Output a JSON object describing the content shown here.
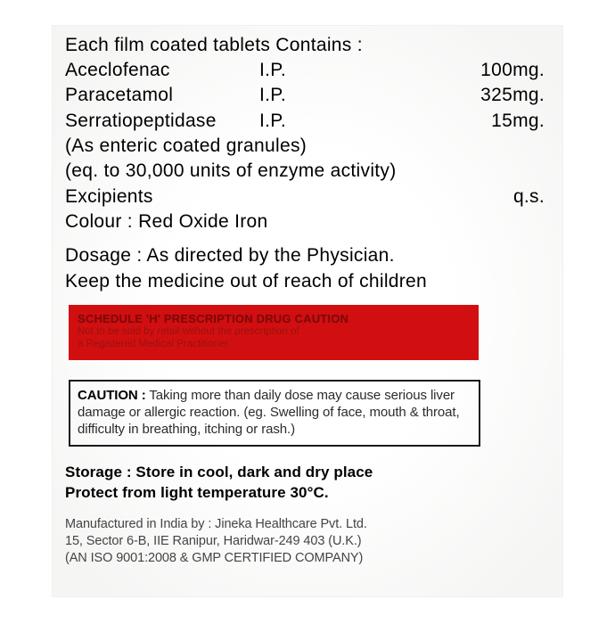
{
  "header": "Each film coated tablets Contains :",
  "ingredients": [
    {
      "name": "Aceclofenac",
      "spec": "I.P.",
      "amount": "100mg."
    },
    {
      "name": "Paracetamol",
      "spec": "I.P.",
      "amount": "325mg."
    },
    {
      "name": "Serratiopeptidase",
      "spec": "I.P.",
      "amount": "15mg."
    }
  ],
  "notes": [
    "(As enteric coated granules)",
    "(eq. to 30,000 units of enzyme activity)"
  ],
  "excipients": {
    "label": "Excipients",
    "value": "q.s."
  },
  "colour": "Colour : Red Oxide Iron",
  "dosage": "Dosage : As directed by the Physician.",
  "keep": "Keep the medicine out of reach of children",
  "redbox": {
    "title": "SCHEDULE 'H' PRESCRIPTION DRUG CAUTION",
    "line1": "Not to be sold by retail without the prescription of",
    "line2": "a Registered Medical Practitioner",
    "bg": "#d20f10"
  },
  "caution": {
    "label": "CAUTION :",
    "text": "Taking more than daily dose may cause serious liver damage or allergic reaction. (eg. Swelling of face, mouth & throat, difficulty in breathing, itching or rash.)"
  },
  "storage": {
    "line1": "Storage : Store in cool, dark and dry place",
    "line2": "Protect from light temperature 30°C."
  },
  "manufacturer": {
    "line1": "Manufactured in India by : Jineka Healthcare Pvt. Ltd.",
    "line2": "15, Sector 6-B, IIE Ranipur, Haridwar-249 403 (U.K.)",
    "line3": "(AN ISO 9001:2008 & GMP CERTIFIED COMPANY)"
  }
}
